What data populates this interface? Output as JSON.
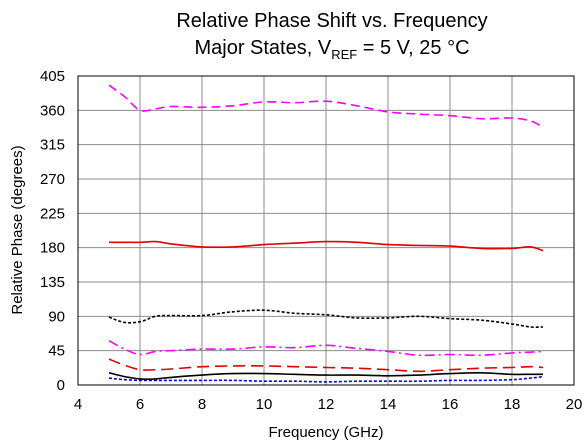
{
  "chart_data": {
    "type": "line",
    "title_line1": "Relative Phase Shift vs. Frequency",
    "title_line2_prefix": "Major States, V",
    "title_line2_sub": "REF",
    "title_line2_suffix": " = 5 V, 25 °C",
    "xlabel": "Frequency (GHz)",
    "ylabel": "Relative Phase (degrees)",
    "xlim": [
      4,
      20
    ],
    "ylim": [
      0,
      405
    ],
    "xticks": [
      4,
      6,
      8,
      10,
      12,
      14,
      16,
      18,
      20
    ],
    "yticks": [
      0,
      45,
      90,
      135,
      180,
      225,
      270,
      315,
      360,
      405
    ],
    "grid": true,
    "series": [
      {
        "color": "#ff00ff",
        "dash": "dashed",
        "width": 1.6,
        "x": [
          5,
          5.5,
          6,
          6.5,
          7,
          8,
          9,
          10,
          11,
          12,
          13,
          14,
          15,
          16,
          17,
          18,
          18.6,
          19
        ],
        "y": [
          393,
          378,
          360,
          362,
          365,
          364,
          366,
          371,
          370,
          372,
          366,
          358,
          355,
          353,
          349,
          350,
          346,
          338
        ]
      },
      {
        "color": "#e00000",
        "dash": "solid",
        "width": 1.6,
        "x": [
          5,
          5.5,
          6,
          6.5,
          7,
          8,
          9,
          10,
          11,
          12,
          13,
          14,
          15,
          16,
          17,
          18,
          18.6,
          19
        ],
        "y": [
          187,
          187,
          187,
          188,
          185,
          181,
          181,
          184,
          186,
          188,
          187,
          184,
          183,
          182,
          179,
          179,
          181,
          176
        ]
      },
      {
        "color": "#000000",
        "dash": "dotted",
        "width": 1.6,
        "x": [
          5,
          5.5,
          6,
          6.5,
          7,
          8,
          9,
          10,
          11,
          12,
          13,
          14,
          15,
          16,
          17,
          18,
          18.6,
          19
        ],
        "y": [
          89,
          82,
          83,
          90,
          91,
          91,
          96,
          98,
          94,
          92,
          88,
          88,
          90,
          87,
          85,
          80,
          76,
          76
        ]
      },
      {
        "color": "#ff00ff",
        "dash": "dashdot",
        "width": 1.6,
        "x": [
          5,
          5.5,
          6,
          6.5,
          7,
          8,
          9,
          10,
          11,
          12,
          13,
          14,
          15,
          16,
          17,
          18,
          18.6,
          19
        ],
        "y": [
          58,
          47,
          40,
          44,
          45,
          47,
          47,
          50,
          49,
          52,
          48,
          44,
          39,
          40,
          39,
          42,
          43,
          44
        ]
      },
      {
        "color": "#e00000",
        "dash": "longdash",
        "width": 1.6,
        "x": [
          5,
          5.5,
          6,
          6.5,
          7,
          8,
          9,
          10,
          11,
          12,
          13,
          14,
          15,
          16,
          17,
          18,
          18.6,
          19
        ],
        "y": [
          34,
          26,
          20,
          20,
          21,
          24,
          25,
          25,
          24,
          23,
          22,
          20,
          18,
          20,
          22,
          23,
          24,
          23
        ]
      },
      {
        "color": "#000000",
        "dash": "solid",
        "width": 1.6,
        "x": [
          5,
          5.5,
          6,
          6.5,
          7,
          8,
          9,
          10,
          11,
          12,
          13,
          14,
          15,
          16,
          17,
          18,
          18.6,
          19
        ],
        "y": [
          16,
          11,
          8,
          8,
          10,
          13,
          15,
          15,
          14,
          13,
          13,
          12,
          13,
          15,
          16,
          14,
          14,
          14
        ]
      },
      {
        "color": "#0000dd",
        "dash": "dotted",
        "width": 1.6,
        "x": [
          5,
          5.5,
          6,
          6.5,
          7,
          8,
          9,
          10,
          11,
          12,
          13,
          14,
          15,
          16,
          17,
          18,
          18.6,
          19
        ],
        "y": [
          9,
          7,
          6,
          6,
          6,
          6,
          6,
          5,
          5,
          4,
          5,
          5,
          5,
          6,
          6,
          7,
          9,
          11
        ]
      }
    ]
  }
}
